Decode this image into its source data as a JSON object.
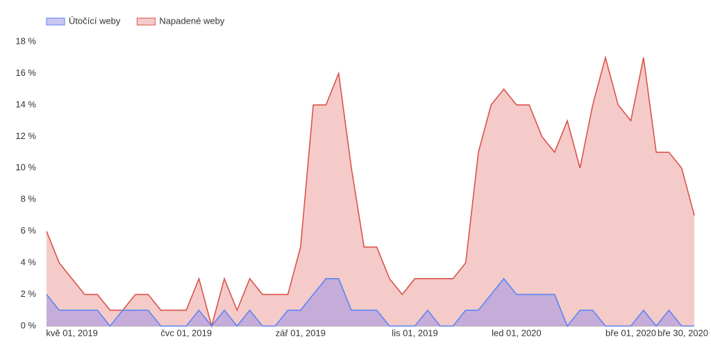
{
  "chart_data": {
    "type": "area",
    "categories": [
      null,
      null,
      "kvě 01, 2019",
      null,
      null,
      null,
      null,
      null,
      null,
      null,
      null,
      "čvc 01, 2019",
      null,
      null,
      null,
      null,
      null,
      null,
      null,
      null,
      "zář 01, 2019",
      null,
      null,
      null,
      null,
      null,
      null,
      null,
      null,
      "lis 01, 2019",
      null,
      null,
      null,
      null,
      null,
      null,
      null,
      "led 01, 2020",
      null,
      null,
      null,
      null,
      null,
      null,
      null,
      null,
      "bře 01, 2020",
      null,
      null,
      null,
      "bře 30, 2020",
      null
    ],
    "series": [
      {
        "name": "Útočící weby",
        "color": "#5b84f5",
        "fill": "rgba(160,150,230,0.55)",
        "values": [
          2,
          1,
          1,
          1,
          1,
          0,
          1,
          1,
          1,
          0,
          0,
          0,
          1,
          0,
          1,
          0,
          1,
          0,
          0,
          1,
          1,
          2,
          3,
          3,
          1,
          1,
          1,
          0,
          0,
          0,
          1,
          0,
          0,
          1,
          1,
          2,
          3,
          2,
          2,
          2,
          2,
          0,
          1,
          1,
          0,
          0,
          0,
          1,
          0,
          1,
          0,
          0
        ]
      },
      {
        "name": "Napadené weby",
        "color": "#d9534a",
        "fill": "rgba(230,140,135,0.45)",
        "values": [
          6,
          4,
          3,
          2,
          2,
          1,
          1,
          2,
          2,
          1,
          1,
          1,
          3,
          0,
          3,
          1,
          3,
          2,
          2,
          2,
          5,
          14,
          14,
          16,
          10,
          5,
          5,
          3,
          2,
          3,
          3,
          3,
          3,
          4,
          11,
          14,
          15,
          14,
          14,
          12,
          11,
          13,
          10,
          14,
          17,
          14,
          13,
          17,
          11,
          11,
          10,
          7
        ]
      }
    ],
    "ylim": [
      0,
      18
    ],
    "yticks": [
      {
        "value": 0,
        "label": "0 %"
      },
      {
        "value": 2,
        "label": "2 %"
      },
      {
        "value": 4,
        "label": "4 %"
      },
      {
        "value": 6,
        "label": "6 %"
      },
      {
        "value": 8,
        "label": "8 %"
      },
      {
        "value": 10,
        "label": "10 %"
      },
      {
        "value": 12,
        "label": "12 %"
      },
      {
        "value": 14,
        "label": "14 %"
      },
      {
        "value": 16,
        "label": "16 %"
      },
      {
        "value": 18,
        "label": "18 %"
      }
    ],
    "legend": "top-left"
  }
}
